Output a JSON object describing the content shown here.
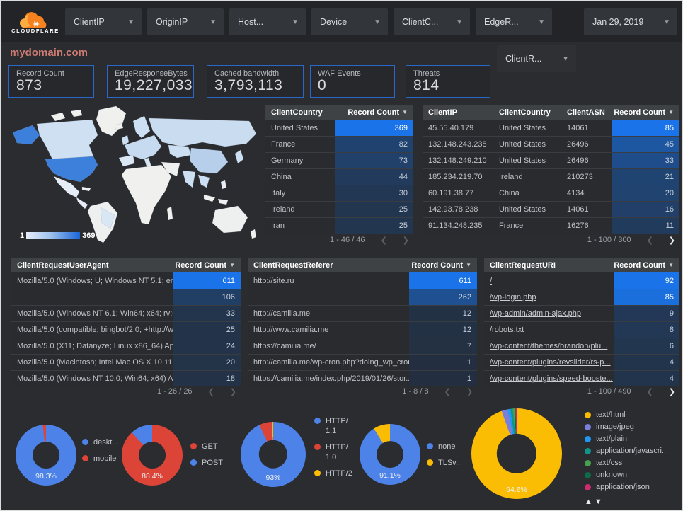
{
  "header": {
    "logo_text": "CLOUDFLARE",
    "filters": [
      {
        "label": "ClientIP"
      },
      {
        "label": "OriginIP"
      },
      {
        "label": "Host..."
      },
      {
        "label": "Device"
      },
      {
        "label": "ClientC..."
      },
      {
        "label": "EdgeR..."
      }
    ],
    "date_filter": "Jan 29, 2019",
    "secondary_filter": "ClientR..."
  },
  "page_title": "mydomain.com",
  "scorecards": [
    {
      "label": "Record Count",
      "value": "873"
    },
    {
      "label": "EdgeResponseBytes",
      "value": "19,227,033"
    },
    {
      "label": "Cached bandwidth",
      "value": "3,793,113"
    },
    {
      "label": "WAF Events",
      "value": "0"
    },
    {
      "label": "Threats",
      "value": "814"
    }
  ],
  "map": {
    "scale_min": "1",
    "scale_max": "369"
  },
  "colors": {
    "accent_blue": "#1a73e8",
    "chart_blue": "#4d82e8",
    "chart_red": "#db4437",
    "chart_yellow": "#fbbc04",
    "scorecard_border": "#2b66c9",
    "title_color": "#cd7b72"
  },
  "tables": {
    "client_country": {
      "columns": [
        "ClientCountry",
        "Record Count"
      ],
      "rows": [
        [
          "United States",
          369
        ],
        [
          "France",
          82
        ],
        [
          "Germany",
          73
        ],
        [
          "China",
          44
        ],
        [
          "Italy",
          30
        ],
        [
          "Ireland",
          25
        ],
        [
          "Iran",
          25
        ]
      ],
      "heat_max": 369,
      "links": false,
      "pagination": {
        "label": "1 - 46 / 46",
        "prev_enabled": false,
        "next_enabled": false
      }
    },
    "client_ip": {
      "columns": [
        "ClientIP",
        "ClientCountry",
        "ClientASN",
        "Record Count"
      ],
      "rows": [
        [
          "45.55.40.179",
          "United States",
          "14061",
          85
        ],
        [
          "132.148.243.238",
          "United States",
          "26496",
          45
        ],
        [
          "132.148.249.210",
          "United States",
          "26496",
          33
        ],
        [
          "185.234.219.70",
          "Ireland",
          "210273",
          21
        ],
        [
          "60.191.38.77",
          "China",
          "4134",
          20
        ],
        [
          "142.93.78.238",
          "United States",
          "14061",
          16
        ],
        [
          "91.134.248.235",
          "France",
          "16276",
          11
        ]
      ],
      "heat_max": 85,
      "links": false,
      "pagination": {
        "label": "1 - 100 / 300",
        "prev_enabled": false,
        "next_enabled": true
      }
    },
    "user_agent": {
      "columns": [
        "ClientRequestUserAgent",
        "Record Count"
      ],
      "rows": [
        [
          "Mozilla/5.0 (Windows; U; Windows NT 5.1; en-U...",
          611
        ],
        [
          "",
          106
        ],
        [
          "Mozilla/5.0 (Windows NT 6.1; Win64; x64; rv:64...",
          33
        ],
        [
          "Mozilla/5.0 (compatible; bingbot/2.0; +http://w...",
          25
        ],
        [
          "Mozilla/5.0 (X11; Datanyze; Linux x86_64) Appl...",
          24
        ],
        [
          "Mozilla/5.0 (Macintosh; Intel Mac OS X 10.11; r...",
          20
        ],
        [
          "Mozilla/5.0 (Windows NT 10.0; Win64; x64) App...",
          18
        ]
      ],
      "heat_max": 611,
      "links": false,
      "pagination": {
        "label": "1 - 26 / 26",
        "prev_enabled": false,
        "next_enabled": false
      }
    },
    "referer": {
      "columns": [
        "ClientRequestReferer",
        "Record Count"
      ],
      "rows": [
        [
          "http://site.ru",
          611
        ],
        [
          "",
          262
        ],
        [
          "http://camilia.me",
          12
        ],
        [
          "http://www.camilia.me",
          12
        ],
        [
          "https://camilia.me/",
          7
        ],
        [
          "http://camilia.me/wp-cron.php?doing_wp_cron...",
          1
        ],
        [
          "https://camilia.me/index.php/2019/01/26/stor...",
          1
        ]
      ],
      "heat_max": 611,
      "links": false,
      "pagination": {
        "label": "1 - 8 / 8",
        "prev_enabled": false,
        "next_enabled": false
      }
    },
    "uri": {
      "columns": [
        "ClientRequestURI",
        "Record Count"
      ],
      "rows": [
        [
          "/",
          92
        ],
        [
          "/wp-login.php",
          85
        ],
        [
          "/wp-admin/admin-ajax.php",
          9
        ],
        [
          "/robots.txt",
          8
        ],
        [
          "/wp-content/themes/brandon/plu...",
          6
        ],
        [
          "/wp-content/plugins/revslider/rs-p...",
          4
        ],
        [
          "/wp-content/plugins/speed-booste...",
          4
        ]
      ],
      "heat_max": 92,
      "links": true,
      "pagination": {
        "label": "1 - 100 / 490",
        "prev_enabled": false,
        "next_enabled": true
      }
    }
  },
  "donuts": [
    {
      "name": "device-type",
      "center_label": "98.3%",
      "slices": [
        {
          "label": "deskt...",
          "pct": 98.3,
          "color": "#4d82e8"
        },
        {
          "label": "mobile",
          "pct": 1.7,
          "color": "#db4437"
        }
      ]
    },
    {
      "name": "request-method",
      "center_label": "88.4%",
      "slices": [
        {
          "label": "GET",
          "pct": 88.4,
          "color": "#db4437"
        },
        {
          "label": "POST",
          "pct": 11.6,
          "color": "#4d82e8"
        }
      ]
    },
    {
      "name": "http-version",
      "center_label": "93%",
      "slices": [
        {
          "label": "HTTP/1.1",
          "pct": 93,
          "color": "#4d82e8"
        },
        {
          "label": "HTTP/1.0",
          "pct": 6.5,
          "color": "#db4437"
        },
        {
          "label": "HTTP/2",
          "pct": 0.5,
          "color": "#fbbc04"
        }
      ]
    },
    {
      "name": "tls-version",
      "center_label": "91.1%",
      "slices": [
        {
          "label": "none",
          "pct": 91.1,
          "color": "#4d82e8"
        },
        {
          "label": "TLSv...",
          "pct": 8.9,
          "color": "#fbbc04"
        }
      ]
    },
    {
      "name": "content-type",
      "center_label": "94.6%",
      "slices": [
        {
          "label": "text/html",
          "pct": 94.6,
          "color": "#fbbc04"
        },
        {
          "label": "image/jpeg",
          "pct": 2.2,
          "color": "#7b7fdc"
        },
        {
          "label": "text/plain",
          "pct": 1.0,
          "color": "#2196f3"
        },
        {
          "label": "application/javascri...",
          "pct": 0.8,
          "color": "#0e9488"
        },
        {
          "label": "text/css",
          "pct": 0.6,
          "color": "#46a14c"
        },
        {
          "label": "unknown",
          "pct": 0.4,
          "color": "#0b6b4a"
        },
        {
          "label": "application/json",
          "pct": 0.4,
          "color": "#cf2b6e"
        }
      ]
    }
  ],
  "legend_pager": {
    "up": "▲",
    "down": "▼"
  }
}
